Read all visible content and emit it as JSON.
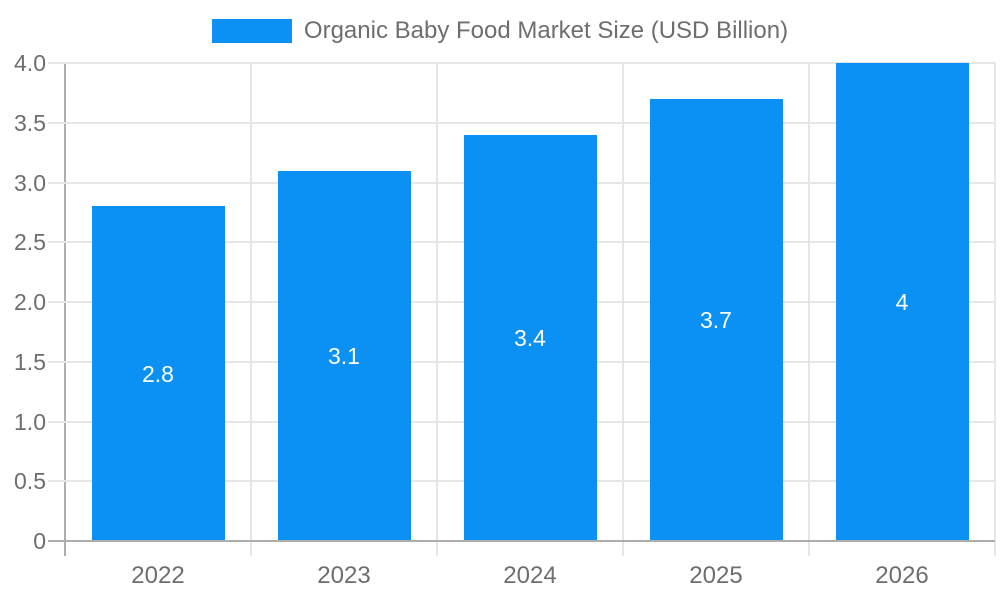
{
  "chart_data": {
    "type": "bar",
    "title": "Organic Baby Food Market Size (USD Billion)",
    "categories": [
      "2022",
      "2023",
      "2024",
      "2025",
      "2026"
    ],
    "values": [
      2.8,
      3.1,
      3.4,
      3.7,
      4
    ],
    "bar_labels": [
      "2.8",
      "3.1",
      "3.4",
      "3.7",
      "4"
    ],
    "xlabel": "",
    "ylabel": "",
    "ylim": [
      0,
      4
    ],
    "y_ticks": [
      0,
      0.5,
      1,
      1.5,
      2,
      2.5,
      3,
      3.5,
      4
    ],
    "y_tick_labels": [
      "0",
      "0.5",
      "1.0",
      "1.5",
      "2.0",
      "2.5",
      "3.0",
      "3.5",
      "4.0"
    ],
    "grid": true,
    "legend_position": "top-center",
    "bar_label_position": "inside-center"
  },
  "colors": {
    "accent": "#0B90F4",
    "background": "#FFFFFF",
    "grid_line": "#E6E6E6",
    "axis_line": "#ADADAD",
    "label_text": "#6E6E6E",
    "bar_value_text": "#FFFFFF"
  }
}
